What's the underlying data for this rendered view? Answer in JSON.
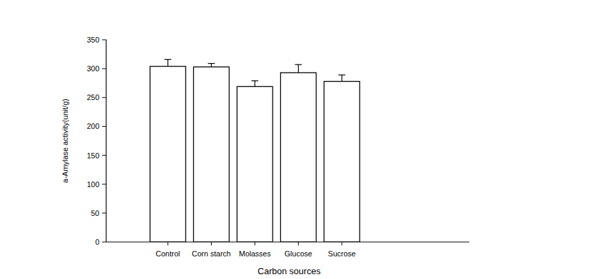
{
  "chart_data": {
    "type": "bar",
    "x_label": "Carbon sources",
    "y_label": "a-Amylase activity(unit/g)",
    "categories": [
      "Control",
      "Corn starch",
      "Molasses",
      "Glucose",
      "Sucrose"
    ],
    "values": [
      304,
      303,
      269,
      293,
      278
    ],
    "errors": [
      12,
      6,
      10,
      14,
      11
    ],
    "color": "#ffffff",
    "ylim": [
      0,
      350
    ],
    "yticks": [
      0,
      50,
      100,
      150,
      200,
      250,
      300,
      350
    ],
    "grid": false
  }
}
